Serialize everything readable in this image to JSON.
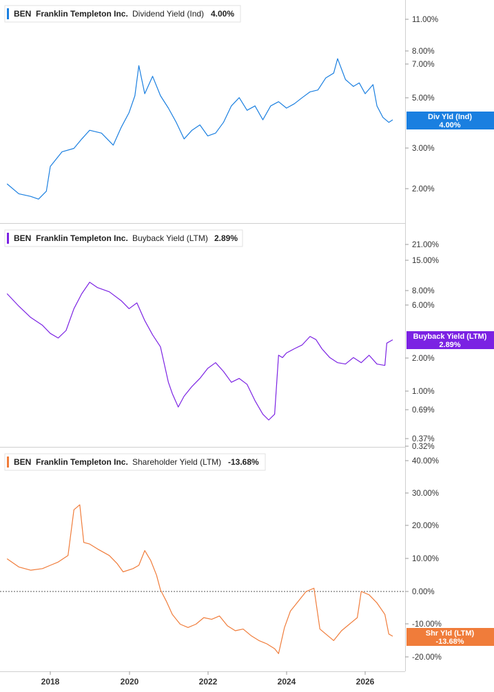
{
  "chart_data": [
    {
      "type": "line",
      "ticker": "BEN",
      "company": "Franklin Templeton Inc.",
      "metric": "Dividend Yield (Ind)",
      "current_value": "4.00%",
      "badge_line1": "Div Yld (Ind)",
      "badge_line2": "4.00%",
      "color": "#1a7fe0",
      "scale": "log",
      "y_ticks": [
        "11.00%",
        "8.00%",
        "7.00%",
        "5.00%",
        "3.00%",
        "2.00%"
      ],
      "x": [
        2016.9,
        2017.2,
        2017.5,
        2017.7,
        2017.9,
        2018.0,
        2018.3,
        2018.6,
        2018.8,
        2019.0,
        2019.3,
        2019.6,
        2019.8,
        2020.0,
        2020.15,
        2020.25,
        2020.4,
        2020.6,
        2020.8,
        2021.0,
        2021.2,
        2021.4,
        2021.6,
        2021.8,
        2022.0,
        2022.2,
        2022.4,
        2022.6,
        2022.8,
        2023.0,
        2023.2,
        2023.4,
        2023.6,
        2023.8,
        2024.0,
        2024.2,
        2024.4,
        2024.6,
        2024.8,
        2025.0,
        2025.2,
        2025.3,
        2025.5,
        2025.7,
        2025.85,
        2026.0,
        2026.2,
        2026.3,
        2026.45,
        2026.6,
        2026.7
      ],
      "y": [
        2.1,
        1.9,
        1.85,
        1.8,
        1.95,
        2.5,
        2.9,
        3.0,
        3.3,
        3.6,
        3.5,
        3.1,
        3.7,
        4.3,
        5.1,
        6.9,
        5.2,
        6.2,
        5.1,
        4.5,
        3.9,
        3.3,
        3.6,
        3.8,
        3.4,
        3.5,
        3.9,
        4.6,
        5.0,
        4.4,
        4.6,
        4.0,
        4.6,
        4.8,
        4.5,
        4.7,
        5.0,
        5.3,
        5.4,
        6.1,
        6.4,
        7.4,
        6.0,
        5.6,
        5.8,
        5.2,
        5.7,
        4.6,
        4.1,
        3.9,
        4.0
      ]
    },
    {
      "type": "line",
      "ticker": "BEN",
      "company": "Franklin Templeton Inc.",
      "metric": "Buyback Yield (LTM)",
      "current_value": "2.89%",
      "badge_line1": "Buyback Yield (LTM)",
      "badge_line2": "2.89%",
      "color": "#7b22e3",
      "scale": "log",
      "y_ticks": [
        "21.00%",
        "15.00%",
        "8.00%",
        "6.00%",
        "2.00%",
        "1.00%",
        "0.69%",
        "0.37%",
        "0.32%"
      ],
      "x": [
        2016.9,
        2017.2,
        2017.5,
        2017.8,
        2018.0,
        2018.2,
        2018.4,
        2018.6,
        2018.8,
        2019.0,
        2019.2,
        2019.5,
        2019.8,
        2020.0,
        2020.2,
        2020.4,
        2020.6,
        2020.8,
        2021.0,
        2021.1,
        2021.25,
        2021.4,
        2021.6,
        2021.8,
        2022.0,
        2022.2,
        2022.4,
        2022.6,
        2022.8,
        2023.0,
        2023.2,
        2023.4,
        2023.55,
        2023.7,
        2023.8,
        2023.9,
        2024.0,
        2024.2,
        2024.4,
        2024.6,
        2024.75,
        2024.9,
        2025.1,
        2025.3,
        2025.5,
        2025.7,
        2025.9,
        2026.1,
        2026.3,
        2026.5,
        2026.55,
        2026.7
      ],
      "y": [
        7.5,
        5.8,
        4.6,
        3.9,
        3.3,
        3.0,
        3.5,
        5.5,
        7.5,
        9.5,
        8.5,
        7.8,
        6.5,
        5.5,
        6.2,
        4.3,
        3.2,
        2.5,
        1.2,
        0.95,
        0.72,
        0.9,
        1.1,
        1.3,
        1.6,
        1.8,
        1.5,
        1.2,
        1.3,
        1.15,
        0.82,
        0.62,
        0.55,
        0.62,
        2.1,
        2.0,
        2.2,
        2.4,
        2.6,
        3.1,
        2.9,
        2.4,
        2.0,
        1.8,
        1.75,
        2.0,
        1.8,
        2.1,
        1.75,
        1.7,
        2.7,
        2.89
      ]
    },
    {
      "type": "line",
      "ticker": "BEN",
      "company": "Franklin Templeton Inc.",
      "metric": "Shareholder Yield (LTM)",
      "current_value": "-13.68%",
      "badge_line1": "Shr Yld (LTM)",
      "badge_line2": "-13.68%",
      "color": "#f07c3a",
      "scale": "linear",
      "y_ticks": [
        "40.00%",
        "30.00%",
        "20.00%",
        "10.00%",
        "0.00%",
        "-10.00%",
        "-20.00%"
      ],
      "x": [
        2016.9,
        2017.2,
        2017.5,
        2017.8,
        2018.0,
        2018.2,
        2018.45,
        2018.6,
        2018.75,
        2018.85,
        2019.0,
        2019.2,
        2019.5,
        2019.7,
        2019.85,
        2020.1,
        2020.25,
        2020.4,
        2020.55,
        2020.7,
        2020.8,
        2020.95,
        2021.1,
        2021.3,
        2021.5,
        2021.7,
        2021.9,
        2022.1,
        2022.3,
        2022.5,
        2022.7,
        2022.9,
        2023.1,
        2023.3,
        2023.5,
        2023.7,
        2023.8,
        2023.95,
        2024.1,
        2024.3,
        2024.5,
        2024.7,
        2024.85,
        2025.0,
        2025.2,
        2025.4,
        2025.6,
        2025.8,
        2025.9,
        2026.1,
        2026.3,
        2026.5,
        2026.6,
        2026.7
      ],
      "y": [
        10.0,
        7.5,
        6.5,
        7.0,
        8.0,
        9.0,
        11.0,
        25.0,
        26.5,
        15.0,
        14.5,
        13.0,
        11.0,
        8.5,
        6.0,
        7.0,
        8.0,
        12.5,
        9.5,
        5.0,
        0.5,
        -3.0,
        -7.0,
        -10.0,
        -11.0,
        -10.0,
        -8.0,
        -8.5,
        -7.5,
        -10.5,
        -12.0,
        -11.5,
        -13.5,
        -15.0,
        -16.0,
        -17.5,
        -19.0,
        -11.0,
        -6.0,
        -3.0,
        0.0,
        1.0,
        -11.5,
        -13.0,
        -15.0,
        -12.0,
        -10.0,
        -8.0,
        0.0,
        -1.0,
        -3.5,
        -7.0,
        -13.0,
        -13.68
      ]
    }
  ],
  "x_axis": {
    "ticks": [
      "2018",
      "2020",
      "2022",
      "2024",
      "2026"
    ]
  }
}
